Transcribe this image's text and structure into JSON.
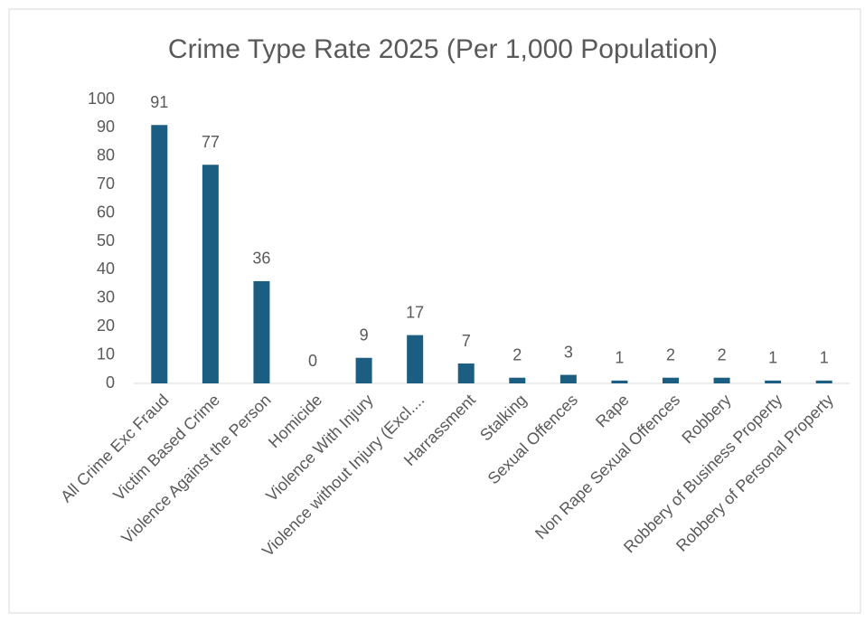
{
  "chart_data": {
    "type": "bar",
    "title": "Crime Type Rate 2025 (Per 1,000 Population)",
    "categories": [
      "All Crime Exc Fraud",
      "Victim Based Crime",
      "Violence Against the Person",
      "Homicide",
      "Violence With Injury",
      "Violence without Injury (Excl....",
      "Harrassment",
      "Stalking",
      "Sexual Offences",
      "Rape",
      "Non Rape Sexual Offences",
      "Robbery",
      "Robbery of Business Property",
      "Robbery of Personal Property"
    ],
    "values": [
      91,
      77,
      36,
      0,
      9,
      17,
      7,
      2,
      3,
      1,
      2,
      2,
      1,
      1
    ],
    "color": "#1b5e82",
    "ylim": [
      0,
      100
    ],
    "yticks": [
      0,
      10,
      20,
      30,
      40,
      50,
      60,
      70,
      80,
      90,
      100
    ],
    "grid": false
  }
}
